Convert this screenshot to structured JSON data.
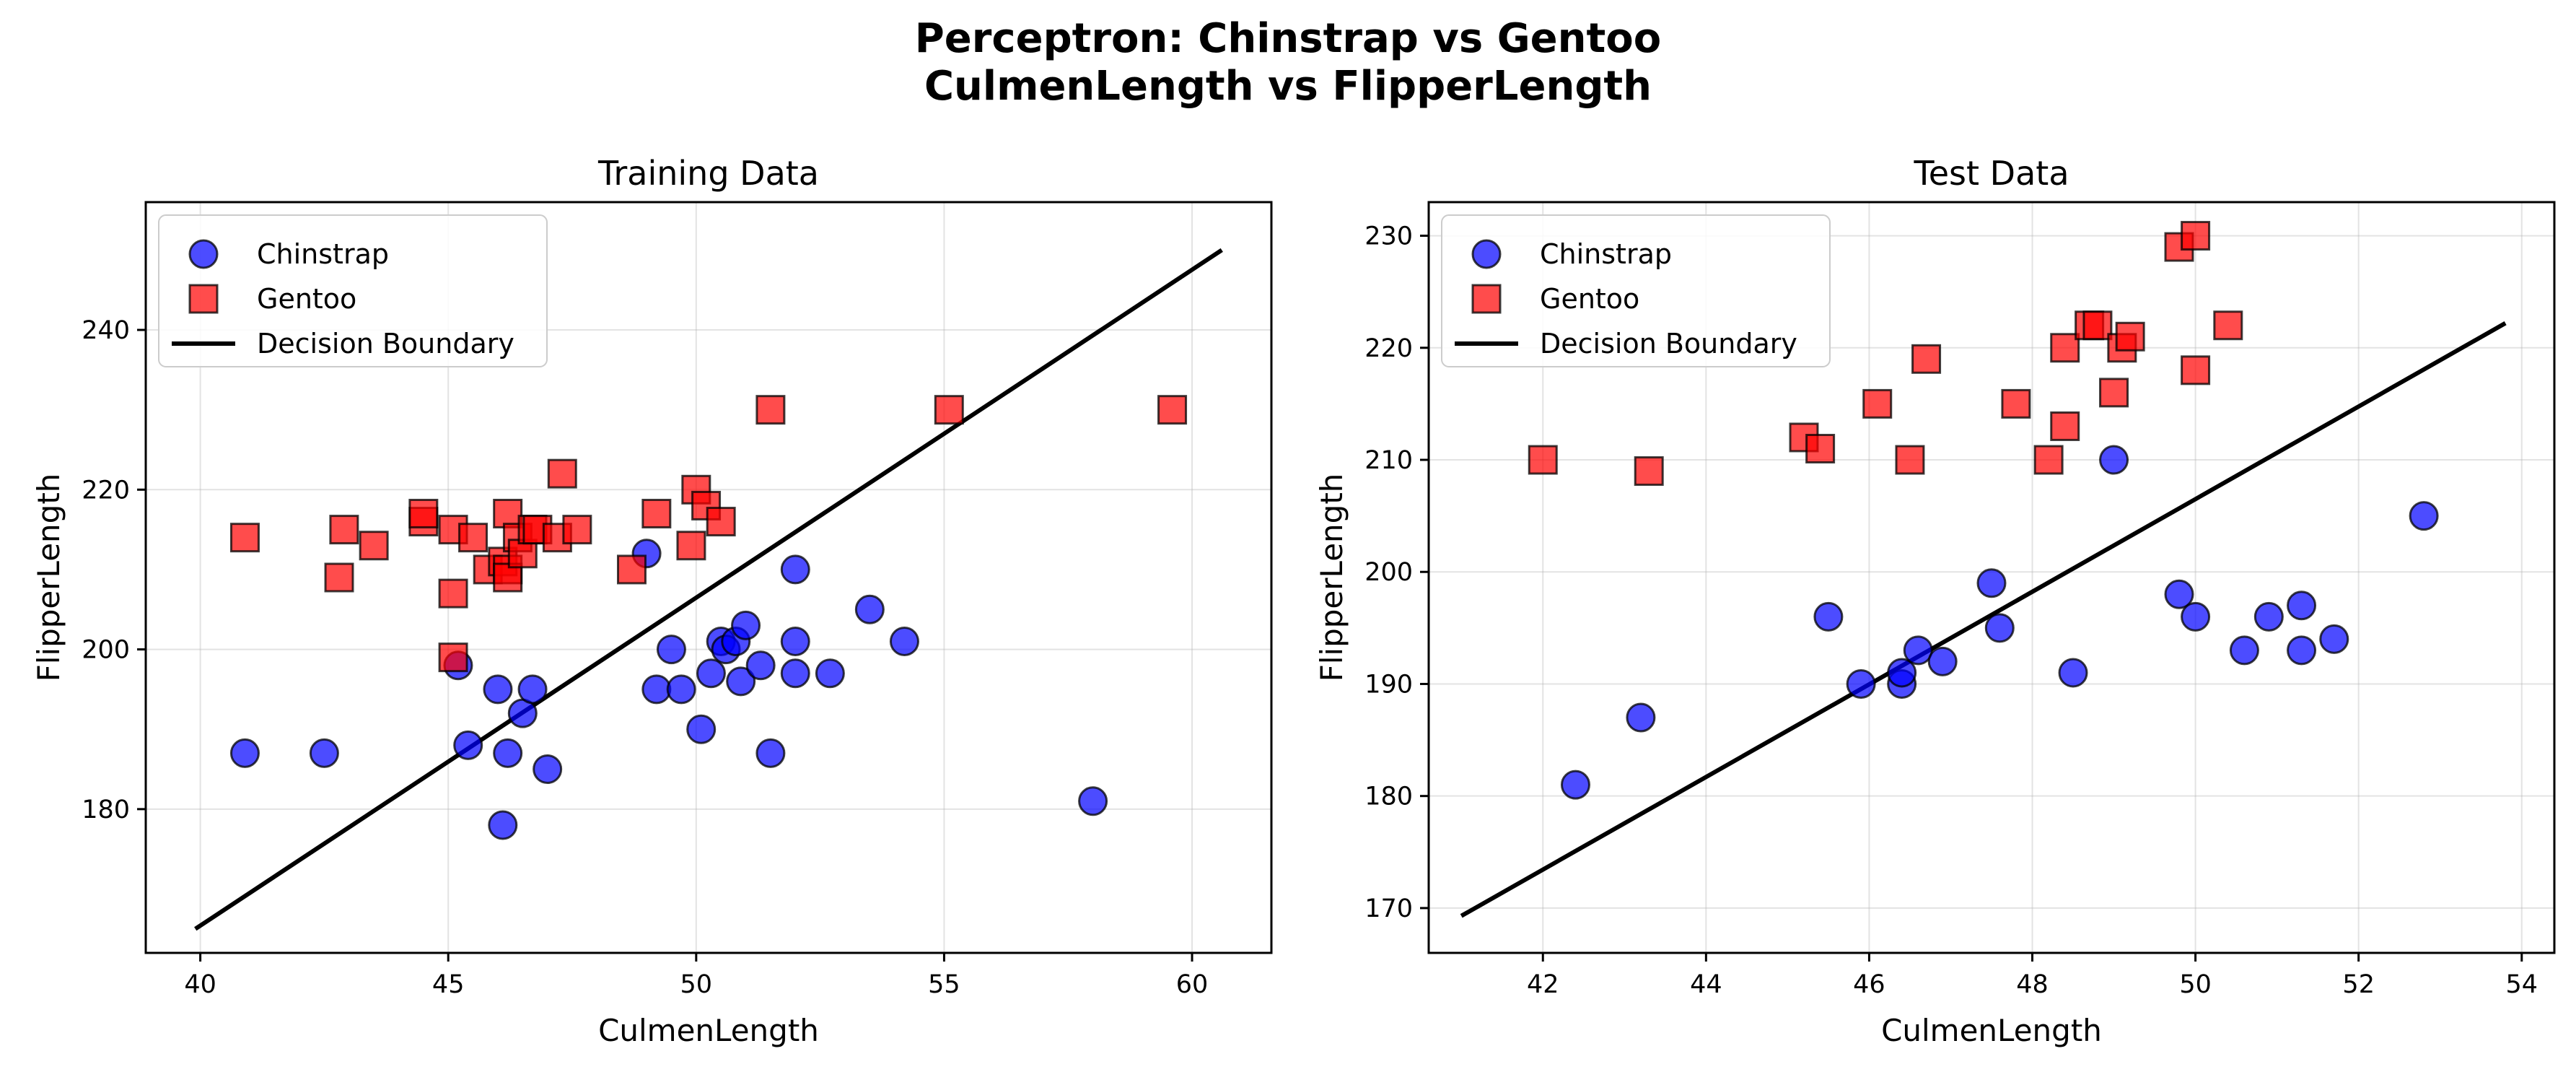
{
  "figure": {
    "title_line1": "Perceptron: Chinstrap vs Gentoo",
    "title_line2": "CulmenLength vs FlipperLength"
  },
  "colors": {
    "chinstrap": "#0000ff",
    "gentoo": "#ff0000",
    "boundary": "#000000",
    "grid": "#b0b0b0"
  },
  "chart_data": [
    {
      "type": "scatter",
      "title": "Training Data",
      "xlabel": "CulmenLength",
      "ylabel": "FlipperLength",
      "xlim": [
        38.9,
        61.6
      ],
      "ylim": [
        162,
        256
      ],
      "xticks": [
        40,
        45,
        50,
        55,
        60
      ],
      "yticks": [
        180,
        200,
        220,
        240
      ],
      "grid": true,
      "legend_position": "upper-left",
      "legend": [
        "Chinstrap",
        "Gentoo",
        "Decision Boundary"
      ],
      "series": [
        {
          "name": "Chinstrap",
          "marker": "circle",
          "points": [
            [
              40.9,
              187
            ],
            [
              42.5,
              187
            ],
            [
              45.2,
              198
            ],
            [
              45.4,
              188
            ],
            [
              46.0,
              195
            ],
            [
              46.1,
              178
            ],
            [
              46.2,
              187
            ],
            [
              46.5,
              192
            ],
            [
              46.7,
              195
            ],
            [
              47.0,
              185
            ],
            [
              49.0,
              212
            ],
            [
              49.2,
              195
            ],
            [
              49.5,
              200
            ],
            [
              49.7,
              195
            ],
            [
              50.1,
              190
            ],
            [
              50.3,
              197
            ],
            [
              50.5,
              201
            ],
            [
              50.6,
              200
            ],
            [
              50.8,
              201
            ],
            [
              50.9,
              196
            ],
            [
              51.0,
              203
            ],
            [
              51.3,
              198
            ],
            [
              51.5,
              187
            ],
            [
              52.0,
              210
            ],
            [
              52.0,
              201
            ],
            [
              52.0,
              197
            ],
            [
              52.7,
              197
            ],
            [
              53.5,
              205
            ],
            [
              54.2,
              201
            ],
            [
              58.0,
              181
            ]
          ]
        },
        {
          "name": "Gentoo",
          "marker": "square",
          "points": [
            [
              40.9,
              214
            ],
            [
              42.8,
              209
            ],
            [
              42.9,
              215
            ],
            [
              43.5,
              213
            ],
            [
              44.5,
              216
            ],
            [
              44.5,
              217
            ],
            [
              45.1,
              207
            ],
            [
              45.1,
              199
            ],
            [
              45.1,
              215
            ],
            [
              45.5,
              214
            ],
            [
              45.8,
              210
            ],
            [
              46.1,
              211
            ],
            [
              46.2,
              210
            ],
            [
              46.2,
              209
            ],
            [
              46.2,
              217
            ],
            [
              46.4,
              214
            ],
            [
              46.5,
              212
            ],
            [
              46.7,
              215
            ],
            [
              46.8,
              215
            ],
            [
              47.2,
              214
            ],
            [
              47.3,
              222
            ],
            [
              47.6,
              215
            ],
            [
              48.7,
              210
            ],
            [
              49.2,
              217
            ],
            [
              49.9,
              213
            ],
            [
              50.0,
              220
            ],
            [
              50.2,
              218
            ],
            [
              50.5,
              216
            ],
            [
              51.5,
              230
            ],
            [
              55.1,
              230
            ],
            [
              59.6,
              230
            ]
          ]
        },
        {
          "name": "Decision Boundary",
          "marker": "line",
          "points": [
            [
              39.9,
              165
            ],
            [
              60.6,
              250
            ]
          ]
        }
      ]
    },
    {
      "type": "scatter",
      "title": "Test Data",
      "xlabel": "CulmenLength",
      "ylabel": "FlipperLength",
      "xlim": [
        40.6,
        54.4
      ],
      "ylim": [
        166,
        233
      ],
      "xticks": [
        42,
        44,
        46,
        48,
        50,
        52,
        54
      ],
      "yticks": [
        170,
        180,
        190,
        200,
        210,
        220,
        230
      ],
      "grid": true,
      "legend_position": "upper-left",
      "legend": [
        "Chinstrap",
        "Gentoo",
        "Decision Boundary"
      ],
      "series": [
        {
          "name": "Chinstrap",
          "marker": "circle",
          "points": [
            [
              42.4,
              181
            ],
            [
              43.2,
              187
            ],
            [
              45.5,
              196
            ],
            [
              45.9,
              190
            ],
            [
              46.4,
              190
            ],
            [
              46.4,
              191
            ],
            [
              46.6,
              193
            ],
            [
              46.9,
              192
            ],
            [
              47.5,
              199
            ],
            [
              47.6,
              195
            ],
            [
              48.5,
              191
            ],
            [
              49.0,
              210
            ],
            [
              49.8,
              198
            ],
            [
              50.0,
              196
            ],
            [
              50.6,
              193
            ],
            [
              50.9,
              196
            ],
            [
              51.3,
              197
            ],
            [
              51.3,
              193
            ],
            [
              51.7,
              194
            ],
            [
              52.8,
              205
            ]
          ]
        },
        {
          "name": "Gentoo",
          "marker": "square",
          "points": [
            [
              42.0,
              210
            ],
            [
              43.3,
              209
            ],
            [
              45.2,
              212
            ],
            [
              45.4,
              211
            ],
            [
              46.1,
              215
            ],
            [
              46.5,
              210
            ],
            [
              46.7,
              219
            ],
            [
              47.8,
              215
            ],
            [
              48.2,
              210
            ],
            [
              48.4,
              213
            ],
            [
              48.4,
              220
            ],
            [
              48.7,
              222
            ],
            [
              48.8,
              222
            ],
            [
              49.0,
              216
            ],
            [
              49.1,
              220
            ],
            [
              49.2,
              221
            ],
            [
              49.8,
              229
            ],
            [
              50.0,
              230
            ],
            [
              50.0,
              218
            ],
            [
              50.4,
              222
            ]
          ]
        },
        {
          "name": "Decision Boundary",
          "marker": "line",
          "points": [
            [
              41.0,
              169.3
            ],
            [
              53.8,
              222.2
            ]
          ]
        }
      ]
    }
  ]
}
